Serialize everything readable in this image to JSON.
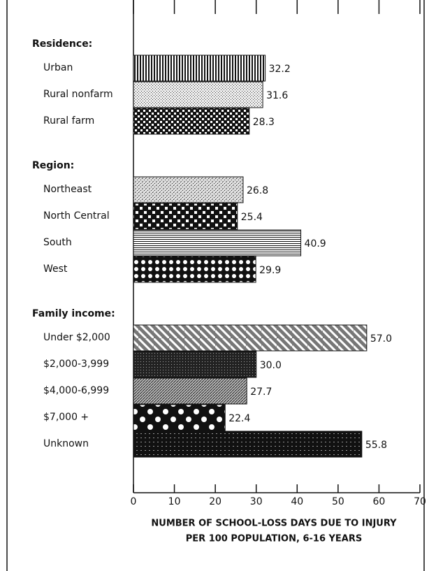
{
  "chart_data": {
    "type": "grouped-hbar",
    "groups": [
      {
        "name": "Residence:",
        "categories": [
          "Urban",
          "Rural nonfarm",
          "Rural farm"
        ],
        "values": [
          32.2,
          31.6,
          28.3
        ],
        "value_labels": [
          "32.2",
          "31.6",
          "28.3"
        ]
      },
      {
        "name": "Region:",
        "categories": [
          "Northeast",
          "North Central",
          "South",
          "West"
        ],
        "values": [
          26.8,
          25.4,
          40.9,
          29.9
        ],
        "value_labels": [
          "26.8",
          "25.4",
          "40.9",
          "29.9"
        ]
      },
      {
        "name": "Family income:",
        "categories": [
          "Under $2,000",
          "$2,000-3,999",
          "$4,000-6,999",
          "$7,000 +",
          "Unknown"
        ],
        "values": [
          57.0,
          30.0,
          27.7,
          22.4,
          55.8
        ],
        "value_labels": [
          "57.0",
          "30.0",
          "27.7",
          "22.4",
          "55.8"
        ]
      }
    ],
    "xlim": [
      0,
      70
    ],
    "xticks": [
      0,
      10,
      20,
      30,
      40,
      50,
      60,
      70
    ],
    "x_label": [
      "NUMBER OF SCHOOL-LOSS DAYS DUE TO INJURY",
      "PER 100 POPULATION, 6-16 YEARS"
    ],
    "color": "#111111"
  }
}
